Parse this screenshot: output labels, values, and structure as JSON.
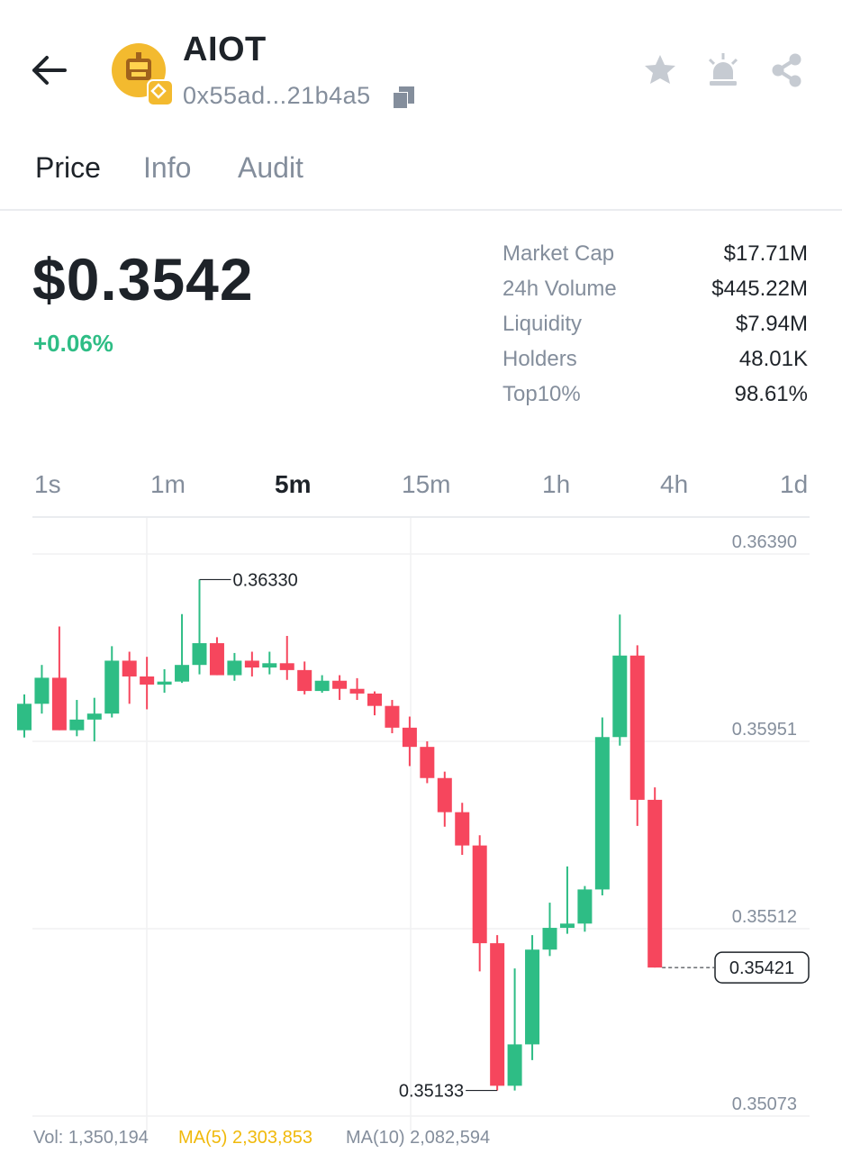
{
  "header": {
    "token_name": "AIOT",
    "address": "0x55ad...21b4a5",
    "icons": [
      "back-arrow-icon",
      "token-logo",
      "bnb-chain-icon",
      "copy-icon",
      "star-icon",
      "alert-icon",
      "share-icon"
    ]
  },
  "tabs": [
    {
      "label": "Price",
      "active": true
    },
    {
      "label": "Info",
      "active": false
    },
    {
      "label": "Audit",
      "active": false
    }
  ],
  "price": {
    "value": "$0.3542",
    "change": "+0.06%"
  },
  "stats": [
    {
      "label": "Market Cap",
      "value": "$17.71M"
    },
    {
      "label": "24h Volume",
      "value": "$445.22M"
    },
    {
      "label": "Liquidity",
      "value": "$7.94M"
    },
    {
      "label": "Holders",
      "value": "48.01K"
    },
    {
      "label": "Top10%",
      "value": "98.61%"
    }
  ],
  "intervals": [
    {
      "label": "1s",
      "active": false
    },
    {
      "label": "1m",
      "active": false
    },
    {
      "label": "5m",
      "active": true
    },
    {
      "label": "15m",
      "active": false
    },
    {
      "label": "1h",
      "active": false
    },
    {
      "label": "4h",
      "active": false
    },
    {
      "label": "1d",
      "active": false
    }
  ],
  "colors": {
    "up": "#2ebd85",
    "down": "#f6465d",
    "accent": "#f0b90b",
    "muted": "#848e9c"
  },
  "chart_data": {
    "type": "candlestick",
    "y_ticks": [
      "0.36390",
      "0.35951",
      "0.35512",
      "0.35073"
    ],
    "ylim": [
      0.35073,
      0.3639
    ],
    "high_label": "0.36330",
    "low_label": "0.35133",
    "last_price_label": "0.35421",
    "grid": true,
    "candles": [
      {
        "o": 0.35977,
        "c": 0.36039,
        "h": 0.36061,
        "l": 0.3596
      },
      {
        "o": 0.36039,
        "c": 0.361,
        "h": 0.3613,
        "l": 0.36016
      },
      {
        "o": 0.361,
        "c": 0.35977,
        "h": 0.3622,
        "l": 0.35977
      },
      {
        "o": 0.35977,
        "c": 0.36002,
        "h": 0.36048,
        "l": 0.35963
      },
      {
        "o": 0.36002,
        "c": 0.36016,
        "h": 0.36053,
        "l": 0.35951
      },
      {
        "o": 0.36016,
        "c": 0.3614,
        "h": 0.36174,
        "l": 0.36007
      },
      {
        "o": 0.3614,
        "c": 0.36103,
        "h": 0.36161,
        "l": 0.36039
      },
      {
        "o": 0.36103,
        "c": 0.36084,
        "h": 0.36149,
        "l": 0.36026
      },
      {
        "o": 0.36084,
        "c": 0.36091,
        "h": 0.3612,
        "l": 0.36065
      },
      {
        "o": 0.36091,
        "c": 0.3613,
        "h": 0.36249,
        "l": 0.36088
      },
      {
        "o": 0.3613,
        "c": 0.36181,
        "h": 0.3633,
        "l": 0.36108
      },
      {
        "o": 0.36181,
        "c": 0.36106,
        "h": 0.36195,
        "l": 0.36106
      },
      {
        "o": 0.36106,
        "c": 0.3614,
        "h": 0.36158,
        "l": 0.36093
      },
      {
        "o": 0.3614,
        "c": 0.36124,
        "h": 0.36161,
        "l": 0.36103
      },
      {
        "o": 0.36124,
        "c": 0.36134,
        "h": 0.36161,
        "l": 0.36108
      },
      {
        "o": 0.36134,
        "c": 0.36118,
        "h": 0.36198,
        "l": 0.36095
      },
      {
        "o": 0.36118,
        "c": 0.36069,
        "h": 0.36138,
        "l": 0.36061
      },
      {
        "o": 0.36069,
        "c": 0.36093,
        "h": 0.36106,
        "l": 0.36065
      },
      {
        "o": 0.36093,
        "c": 0.36074,
        "h": 0.36106,
        "l": 0.36048
      },
      {
        "o": 0.36074,
        "c": 0.36063,
        "h": 0.36099,
        "l": 0.36048
      },
      {
        "o": 0.36063,
        "c": 0.36034,
        "h": 0.36068,
        "l": 0.36012
      },
      {
        "o": 0.36034,
        "c": 0.35983,
        "h": 0.36048,
        "l": 0.3597
      },
      {
        "o": 0.35983,
        "c": 0.35938,
        "h": 0.36009,
        "l": 0.35893
      },
      {
        "o": 0.35938,
        "c": 0.35865,
        "h": 0.35951,
        "l": 0.35853
      },
      {
        "o": 0.35865,
        "c": 0.35785,
        "h": 0.3588,
        "l": 0.35751
      },
      {
        "o": 0.35785,
        "c": 0.35707,
        "h": 0.35807,
        "l": 0.35685
      },
      {
        "o": 0.35707,
        "c": 0.35478,
        "h": 0.35731,
        "l": 0.35412
      },
      {
        "o": 0.35478,
        "c": 0.35144,
        "h": 0.35497,
        "l": 0.35133
      },
      {
        "o": 0.35144,
        "c": 0.35241,
        "h": 0.35419,
        "l": 0.35133
      },
      {
        "o": 0.35241,
        "c": 0.35463,
        "h": 0.35497,
        "l": 0.35204
      },
      {
        "o": 0.35463,
        "c": 0.35514,
        "h": 0.35573,
        "l": 0.35448
      },
      {
        "o": 0.35514,
        "c": 0.35524,
        "h": 0.35658,
        "l": 0.355
      },
      {
        "o": 0.35524,
        "c": 0.35604,
        "h": 0.35612,
        "l": 0.35505
      },
      {
        "o": 0.35604,
        "c": 0.35961,
        "h": 0.36007,
        "l": 0.3559
      },
      {
        "o": 0.35961,
        "c": 0.36152,
        "h": 0.36248,
        "l": 0.35941
      },
      {
        "o": 0.36152,
        "c": 0.35814,
        "h": 0.36176,
        "l": 0.35753
      },
      {
        "o": 0.35814,
        "c": 0.35421,
        "h": 0.35843,
        "l": 0.35421
      }
    ]
  },
  "footer": {
    "vol": "Vol: 1,350,194",
    "ma5": "MA(5) 2,303,853",
    "ma10": "MA(10) 2,082,594"
  }
}
